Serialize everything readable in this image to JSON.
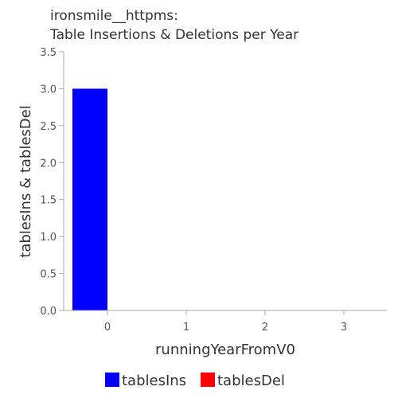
{
  "chart_data": {
    "type": "bar",
    "title": [
      "ironsmile__httpms:",
      "Table Insertions & Deletions per Year"
    ],
    "xlabel": "runningYearFromV0",
    "ylabel": "tablesIns & tablesDel",
    "categories": [
      "0",
      "1",
      "2",
      "3"
    ],
    "yticks": [
      "0.0",
      "0.5",
      "1.0",
      "1.5",
      "2.0",
      "2.5",
      "3.0",
      "3.5"
    ],
    "ylim": [
      0,
      3.5
    ],
    "grid": false,
    "legend_position": "bottom",
    "series": [
      {
        "name": "tablesIns",
        "color": "#0000ff",
        "values": [
          3,
          0,
          0,
          0
        ]
      },
      {
        "name": "tablesDel",
        "color": "#ff0000",
        "values": [
          0,
          0,
          0,
          0
        ]
      }
    ]
  }
}
